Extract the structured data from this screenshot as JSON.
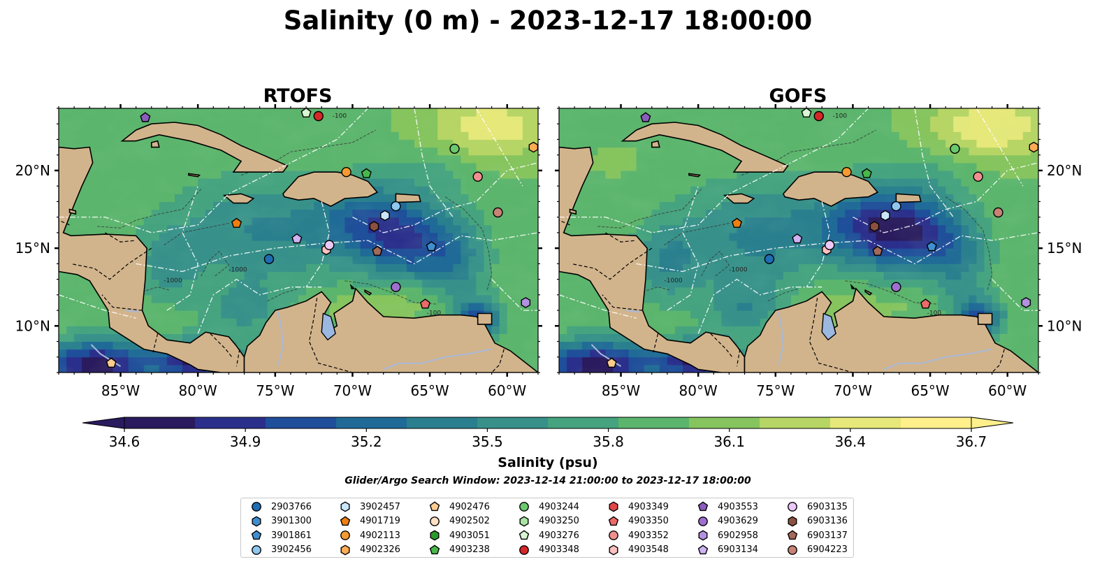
{
  "figure": {
    "title": "Salinity (0 m) - 2023-12-17 18:00:00",
    "left_panel_title": "RTOFS",
    "right_panel_title": "GOFS",
    "colorbar_label": "Salinity (psu)",
    "search_window": "Glider/Argo Search Window: 2023-12-14 21:00:00 to 2023-12-17 18:00:00"
  },
  "colors": {
    "land": "#d2b48c",
    "rivers": "#a8b8d8",
    "lake": "#9bb8e0",
    "colormap": [
      "#2a1a5e",
      "#2b2f8c",
      "#1f4e9a",
      "#1f6a97",
      "#2a7f8e",
      "#37918a",
      "#45a37f",
      "#5cb56d",
      "#86c45e",
      "#b6d565",
      "#e6e87a",
      "#fff08c"
    ]
  },
  "chart_data": [
    {
      "type": "heatmap",
      "title": "RTOFS",
      "variable": "Salinity (psu)",
      "depth": "0 m",
      "xlim": [
        -89,
        -58
      ],
      "ylim": [
        7,
        24
      ],
      "xticks": [
        -85,
        -80,
        -75,
        -70,
        -65,
        -60
      ],
      "xtick_labels": [
        "85°W",
        "80°W",
        "75°W",
        "70°W",
        "65°W",
        "60°W"
      ],
      "yticks": [
        10,
        15,
        20
      ],
      "ytick_labels": [
        "10°N",
        "15°N",
        "20°N"
      ],
      "contour_labels": [
        "-100",
        "-1000"
      ]
    },
    {
      "type": "heatmap",
      "title": "GOFS",
      "variable": "Salinity (psu)",
      "depth": "0 m",
      "xlim": [
        -89,
        -58
      ],
      "ylim": [
        7,
        24
      ],
      "xticks": [
        -85,
        -80,
        -75,
        -70,
        -65,
        -60
      ],
      "xtick_labels": [
        "85°W",
        "80°W",
        "75°W",
        "70°W",
        "65°W",
        "60°W"
      ],
      "yticks": [
        10,
        15,
        20
      ],
      "ytick_labels": [
        "10°N",
        "15°N",
        "20°N"
      ],
      "contour_labels": [
        "-100",
        "-1000"
      ]
    },
    {
      "type": "colorbar",
      "label": "Salinity (psu)",
      "range": [
        34.6,
        36.7
      ],
      "ticks": [
        34.6,
        34.9,
        35.2,
        35.5,
        35.8,
        36.1,
        36.4,
        36.7
      ],
      "tick_labels": [
        "34.6",
        "34.9",
        "35.2",
        "35.5",
        "35.8",
        "36.1",
        "36.4",
        "36.7"
      ],
      "extend": "both"
    }
  ],
  "floats": [
    {
      "id": "2903766",
      "marker": "circle",
      "color": "#1f6db5",
      "lon": -75.4,
      "lat": 14.3
    },
    {
      "id": "3901300",
      "marker": "hexagon",
      "color": "#3f8fd0",
      "lon": null,
      "lat": null
    },
    {
      "id": "3901861",
      "marker": "pentagon",
      "color": "#3f8fd0",
      "lon": -64.9,
      "lat": 15.1
    },
    {
      "id": "3902456",
      "marker": "circle",
      "color": "#8ec7f0",
      "lon": -67.2,
      "lat": 17.7
    },
    {
      "id": "3902457",
      "marker": "hexagon",
      "color": "#c9e6fb",
      "lon": -67.9,
      "lat": 17.1
    },
    {
      "id": "4901719",
      "marker": "pentagon",
      "color": "#f07f10",
      "lon": -77.5,
      "lat": 16.6
    },
    {
      "id": "4902113",
      "marker": "circle",
      "color": "#f59a30",
      "lon": -70.4,
      "lat": 19.9
    },
    {
      "id": "4902326",
      "marker": "hexagon",
      "color": "#ffac55",
      "lon": -58.3,
      "lat": 21.5
    },
    {
      "id": "4902476",
      "marker": "pentagon",
      "color": "#ffcc90",
      "lon": -85.6,
      "lat": 7.6
    },
    {
      "id": "4902502",
      "marker": "circle",
      "color": "#ffe0c2",
      "lon": null,
      "lat": null
    },
    {
      "id": "4903051",
      "marker": "hexagon",
      "color": "#2a9a2a",
      "lon": null,
      "lat": null
    },
    {
      "id": "4903238",
      "marker": "pentagon",
      "color": "#49b84a",
      "lon": -69.1,
      "lat": 19.8
    },
    {
      "id": "4903244",
      "marker": "circle",
      "color": "#6cc86e",
      "lon": -63.4,
      "lat": 21.4
    },
    {
      "id": "4903250",
      "marker": "hexagon",
      "color": "#a8e4a4",
      "lon": null,
      "lat": null
    },
    {
      "id": "4903276",
      "marker": "pentagon",
      "color": "#d8f7d2",
      "lon": -73.0,
      "lat": 23.7
    },
    {
      "id": "4903348",
      "marker": "circle",
      "color": "#d62728",
      "lon": -72.2,
      "lat": 23.5
    },
    {
      "id": "4903349",
      "marker": "hexagon",
      "color": "#e04848",
      "lon": null,
      "lat": null
    },
    {
      "id": "4903350",
      "marker": "pentagon",
      "color": "#eb6a6a",
      "lon": -65.3,
      "lat": 11.4
    },
    {
      "id": "4903352",
      "marker": "circle",
      "color": "#f08f8f",
      "lon": -61.9,
      "lat": 19.6
    },
    {
      "id": "4903548",
      "marker": "hexagon",
      "color": "#fbc0c0",
      "lon": -71.7,
      "lat": 14.9
    },
    {
      "id": "4903553",
      "marker": "pentagon",
      "color": "#8a5cbc",
      "lon": -83.4,
      "lat": 23.4
    },
    {
      "id": "4903629",
      "marker": "circle",
      "color": "#9f6fd0",
      "lon": -67.2,
      "lat": 12.5
    },
    {
      "id": "6902958",
      "marker": "hexagon",
      "color": "#b490e0",
      "lon": -58.8,
      "lat": 11.5
    },
    {
      "id": "6903134",
      "marker": "pentagon",
      "color": "#cfb2f2",
      "lon": -73.6,
      "lat": 15.6
    },
    {
      "id": "6903135",
      "marker": "circle",
      "color": "#ecc8f8",
      "lon": -71.5,
      "lat": 15.2
    },
    {
      "id": "6903136",
      "marker": "hexagon",
      "color": "#8c5040",
      "lon": -68.6,
      "lat": 16.4
    },
    {
      "id": "6903137",
      "marker": "pentagon",
      "color": "#a36a5a",
      "lon": -68.4,
      "lat": 14.8
    },
    {
      "id": "6904223",
      "marker": "circle",
      "color": "#c88276",
      "lon": -60.6,
      "lat": 17.3
    }
  ]
}
